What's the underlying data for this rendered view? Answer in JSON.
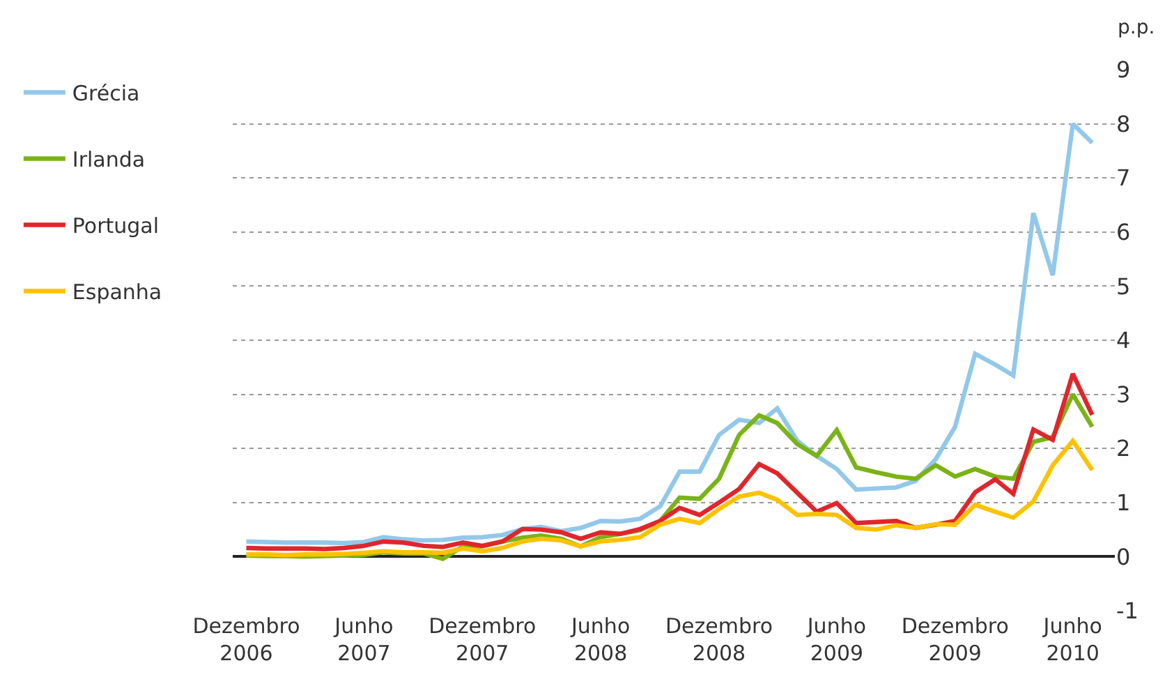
{
  "chart_data": {
    "type": "line",
    "ylabel": "p.p.",
    "x": [
      "2006-12",
      "2007-01",
      "2007-02",
      "2007-03",
      "2007-04",
      "2007-05",
      "2007-06",
      "2007-07",
      "2007-08",
      "2007-09",
      "2007-10",
      "2007-11",
      "2007-12",
      "2008-01",
      "2008-02",
      "2008-03",
      "2008-04",
      "2008-05",
      "2008-06",
      "2008-07",
      "2008-08",
      "2008-09",
      "2008-10",
      "2008-11",
      "2008-12",
      "2009-01",
      "2009-02",
      "2009-03",
      "2009-04",
      "2009-05",
      "2009-06",
      "2009-07",
      "2009-08",
      "2009-09",
      "2009-10",
      "2009-11",
      "2009-12",
      "2010-01",
      "2010-02",
      "2010-03",
      "2010-04",
      "2010-05",
      "2010-06",
      "2010-07"
    ],
    "series": [
      {
        "name": "Grécia",
        "color": "#92c8ea",
        "values": [
          0.28,
          0.27,
          0.26,
          0.26,
          0.26,
          0.25,
          0.27,
          0.36,
          0.32,
          0.3,
          0.31,
          0.35,
          0.36,
          0.4,
          0.51,
          0.55,
          0.47,
          0.53,
          0.66,
          0.65,
          0.7,
          0.93,
          1.57,
          1.57,
          2.25,
          2.53,
          2.47,
          2.74,
          2.14,
          1.86,
          1.62,
          1.24,
          1.26,
          1.28,
          1.4,
          1.8,
          2.4,
          3.75,
          3.55,
          3.35,
          6.35,
          5.2,
          8.0,
          7.65
        ]
      },
      {
        "name": "Irlanda",
        "color": "#7ab317",
        "values": [
          0.02,
          0.01,
          0.01,
          0.0,
          0.01,
          0.02,
          0.03,
          0.08,
          0.06,
          0.06,
          -0.04,
          0.19,
          0.19,
          0.28,
          0.35,
          0.39,
          0.33,
          0.19,
          0.36,
          0.42,
          0.49,
          0.66,
          1.09,
          1.07,
          1.44,
          2.25,
          2.61,
          2.47,
          2.08,
          1.86,
          2.34,
          1.65,
          1.56,
          1.48,
          1.44,
          1.69,
          1.48,
          1.62,
          1.48,
          1.44,
          2.12,
          2.21,
          3.0,
          2.4
        ]
      },
      {
        "name": "Portugal",
        "color": "#e0262c",
        "values": [
          0.16,
          0.15,
          0.15,
          0.15,
          0.14,
          0.16,
          0.2,
          0.28,
          0.26,
          0.2,
          0.18,
          0.26,
          0.2,
          0.28,
          0.51,
          0.5,
          0.45,
          0.33,
          0.45,
          0.42,
          0.51,
          0.66,
          0.9,
          0.77,
          1.0,
          1.25,
          1.71,
          1.54,
          1.18,
          0.83,
          0.99,
          0.62,
          0.64,
          0.66,
          0.53,
          0.59,
          0.66,
          1.19,
          1.43,
          1.16,
          2.35,
          2.16,
          3.38,
          2.62
        ]
      },
      {
        "name": "Espanha",
        "color": "#fcc200",
        "values": [
          0.04,
          0.04,
          0.03,
          0.04,
          0.04,
          0.05,
          0.07,
          0.1,
          0.08,
          0.08,
          0.07,
          0.15,
          0.1,
          0.16,
          0.28,
          0.33,
          0.3,
          0.19,
          0.28,
          0.31,
          0.36,
          0.59,
          0.7,
          0.62,
          0.88,
          1.11,
          1.18,
          1.05,
          0.77,
          0.79,
          0.77,
          0.53,
          0.5,
          0.58,
          0.53,
          0.6,
          0.59,
          0.96,
          0.83,
          0.72,
          1.02,
          1.69,
          2.14,
          1.6
        ]
      }
    ],
    "xlim": [
      "2006-11-10",
      "2010-08-05"
    ],
    "xticks": [
      {
        "value": "2006-12",
        "label": "Dezembro\n2006"
      },
      {
        "value": "2007-06",
        "label": "Junho\n2007"
      },
      {
        "value": "2007-12",
        "label": "Dezembro\n2007"
      },
      {
        "value": "2008-06",
        "label": "Junho\n2008"
      },
      {
        "value": "2008-12",
        "label": "Dezembro\n2008"
      },
      {
        "value": "2009-06",
        "label": "Junho\n2009"
      },
      {
        "value": "2009-12",
        "label": "Dezembro\n2009"
      },
      {
        "value": "2010-06",
        "label": "Junho\n2010"
      }
    ],
    "ylim": [
      -1,
      9
    ],
    "yticks": [
      -1,
      0,
      1,
      2,
      3,
      4,
      5,
      6,
      7,
      8,
      9
    ],
    "grid": "y",
    "legend": "top left",
    "marker": "none",
    "line_style": "solid"
  }
}
